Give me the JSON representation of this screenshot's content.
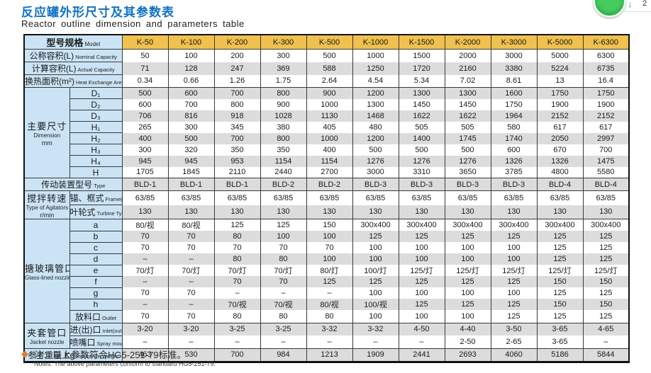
{
  "page": {
    "title_zh": "反应罐外形尺寸及其参数表",
    "title_en": "Reactor outline dimension and parameters table"
  },
  "corner_widget": {
    "arrow_glyph": "↓",
    "badge": "2",
    "circle_color": "#45CC5D"
  },
  "table": {
    "model_header": {
      "zh": "型号规格",
      "en": "Model"
    },
    "columns": [
      "K-50",
      "K-100",
      "K-200",
      "K-300",
      "K-500",
      "K-1000",
      "K-1500",
      "K-2000",
      "K-3000",
      "K-5000",
      "K-6300"
    ],
    "groups": [
      {
        "zh": "主要尺寸",
        "en": "Dimension",
        "unit": "mm"
      },
      {
        "zh": "搅拌转速",
        "en": "Type of Agitators",
        "unit": "r/min"
      },
      {
        "zh": "搪玻璃管口",
        "en": "Glass-lined nozzle",
        "unit": ""
      },
      {
        "zh": "夹套管口",
        "en": "Jacket nozzle",
        "unit": ""
      }
    ],
    "rows": [
      {
        "zh": "公称容积(L)",
        "en": "Nominal Capacity",
        "values": [
          "50",
          "100",
          "200",
          "300",
          "500",
          "1000",
          "1500",
          "2000",
          "3000",
          "5000",
          "6300"
        ]
      },
      {
        "zh": "计算容积(L)",
        "en": "Actual Capacity",
        "values": [
          "71",
          "128",
          "247",
          "369",
          "588",
          "1250",
          "1720",
          "2160",
          "3380",
          "5224",
          "6735"
        ]
      },
      {
        "zh": "换热面积(m²)",
        "en": "Heat Exchange Area",
        "values": [
          "0.34",
          "0.66",
          "1.26",
          "1.75",
          "2.64",
          "4.54",
          "5.34",
          "7.02",
          "8.61",
          "13",
          "16.4"
        ]
      },
      {
        "group": 0,
        "zh": "D₁",
        "en": "",
        "section": true,
        "values": [
          "500",
          "600",
          "700",
          "800",
          "900",
          "1200",
          "1300",
          "1300",
          "1600",
          "1750",
          "1750"
        ]
      },
      {
        "group": 0,
        "zh": "D₂",
        "en": "",
        "values": [
          "600",
          "700",
          "800",
          "900",
          "1000",
          "1300",
          "1450",
          "1450",
          "1750",
          "1900",
          "1900"
        ]
      },
      {
        "group": 0,
        "zh": "D₃",
        "en": "",
        "values": [
          "706",
          "816",
          "918",
          "1028",
          "1130",
          "1468",
          "1622",
          "1622",
          "1964",
          "2152",
          "2152"
        ]
      },
      {
        "group": 0,
        "zh": "H₁",
        "en": "",
        "values": [
          "265",
          "300",
          "345",
          "380",
          "405",
          "480",
          "505",
          "505",
          "580",
          "617",
          "617"
        ]
      },
      {
        "group": 0,
        "zh": "H₂",
        "en": "",
        "values": [
          "400",
          "500",
          "700",
          "800",
          "1000",
          "1200",
          "1400",
          "1745",
          "1740",
          "2050",
          "2997"
        ]
      },
      {
        "group": 0,
        "zh": "H₃",
        "en": "",
        "values": [
          "300",
          "320",
          "350",
          "350",
          "400",
          "500",
          "500",
          "500",
          "600",
          "670",
          "700"
        ]
      },
      {
        "group": 0,
        "zh": "H₄",
        "en": "",
        "values": [
          "945",
          "945",
          "953",
          "1154",
          "1154",
          "1276",
          "1276",
          "1276",
          "1326",
          "1326",
          "1475"
        ]
      },
      {
        "group": 0,
        "zh": "H",
        "en": "",
        "values": [
          "1705",
          "1845",
          "2110",
          "2440",
          "2700",
          "3000",
          "3310",
          "3650",
          "3785",
          "4800",
          "5580"
        ]
      },
      {
        "zh": "传动装置型号",
        "en": "Type",
        "section": true,
        "values": [
          "BLD-1",
          "BLD-1",
          "BLD-1",
          "BLD-2",
          "BLD-2",
          "BLD-3",
          "BLD-3",
          "BLD-3",
          "BLD-3",
          "BLD-4",
          "BLD-4"
        ]
      },
      {
        "group": 1,
        "zh": "锚、框式",
        "en": "Frame(Anchor)Type",
        "section": true,
        "values": [
          "63/85",
          "63/85",
          "63/85",
          "63/85",
          "63/85",
          "63/85",
          "63/85",
          "63/85",
          "63/85",
          "63/85",
          "63/85"
        ]
      },
      {
        "group": 1,
        "zh": "叶轮式",
        "en": "Turbine Type",
        "values": [
          "130",
          "130",
          "130",
          "130",
          "130",
          "130",
          "130",
          "130",
          "130",
          "130",
          "130"
        ]
      },
      {
        "group": 2,
        "zh": "a",
        "en": "",
        "section": true,
        "values": [
          "80/视",
          "80/视",
          "125",
          "125",
          "150",
          "300x400",
          "300x400",
          "300x400",
          "300x400",
          "300x400",
          "300x400"
        ]
      },
      {
        "group": 2,
        "zh": "b",
        "en": "",
        "values": [
          "70",
          "70",
          "80",
          "100",
          "100",
          "125",
          "125",
          "125",
          "125",
          "125",
          "125"
        ]
      },
      {
        "group": 2,
        "zh": "c",
        "en": "",
        "values": [
          "70",
          "70",
          "70",
          "70",
          "70",
          "100",
          "100",
          "100",
          "100",
          "125",
          "125"
        ]
      },
      {
        "group": 2,
        "zh": "d",
        "en": "",
        "values": [
          "–",
          "–",
          "80",
          "80",
          "100",
          "100",
          "100",
          "100",
          "100",
          "125",
          "125"
        ]
      },
      {
        "group": 2,
        "zh": "e",
        "en": "",
        "values": [
          "70/灯",
          "70/灯",
          "70/灯",
          "70/灯",
          "80/灯",
          "100/灯",
          "125/灯",
          "125/灯",
          "125/灯",
          "125/灯",
          "125/灯"
        ]
      },
      {
        "group": 2,
        "zh": "f",
        "en": "",
        "values": [
          "–",
          "–",
          "70",
          "70",
          "125",
          "125",
          "125",
          "125",
          "125",
          "150",
          "150"
        ]
      },
      {
        "group": 2,
        "zh": "g",
        "en": "",
        "values": [
          "70",
          "70",
          "–",
          "–",
          "–",
          "100",
          "100",
          "100",
          "100",
          "125",
          "125"
        ]
      },
      {
        "group": 2,
        "zh": "h",
        "en": "",
        "values": [
          "–",
          "–",
          "70/视",
          "70/视",
          "80/视",
          "100/视",
          "125",
          "125",
          "125",
          "150",
          "150"
        ]
      },
      {
        "group": 2,
        "zh": "放料口",
        "en": "Outlet",
        "values": [
          "70",
          "70",
          "80",
          "80",
          "80",
          "100",
          "100",
          "100",
          "125",
          "125",
          "125"
        ]
      },
      {
        "group": 3,
        "zh": "进(出)口",
        "en": "Inlet(outlet)",
        "section": true,
        "values": [
          "3-20",
          "3-20",
          "3-25",
          "3-25",
          "3-32",
          "3-32",
          "4-50",
          "4-40",
          "3-50",
          "3-65",
          "4-65"
        ]
      },
      {
        "group": 3,
        "zh": "喷嘴口",
        "en": "Spray mouth",
        "values": [
          "–",
          "–",
          "–",
          "–",
          "–",
          "–",
          "–",
          "2-50",
          "2-65",
          "3-65",
          "–"
        ]
      },
      {
        "zh": "参考重量 Kg",
        "en": "Reference Weight",
        "section": true,
        "values": [
          "463",
          "530",
          "700",
          "984",
          "1213",
          "1909",
          "2441",
          "2693",
          "4060",
          "5186",
          "5844"
        ]
      }
    ]
  },
  "note": {
    "bullet": "◆",
    "zh": "注：以上参数符合HG5-251-79标准。",
    "en": "Notes: The above parameters conform to standard HG5-251-79."
  },
  "colors": {
    "title_blue": "#1272C2",
    "header_orange": "#F0C14E",
    "label_blue": "#CBE4F5",
    "stripe_gray": "#DCDCDC",
    "note_orange": "#E8772C",
    "widget_green": "#45CC5D"
  }
}
